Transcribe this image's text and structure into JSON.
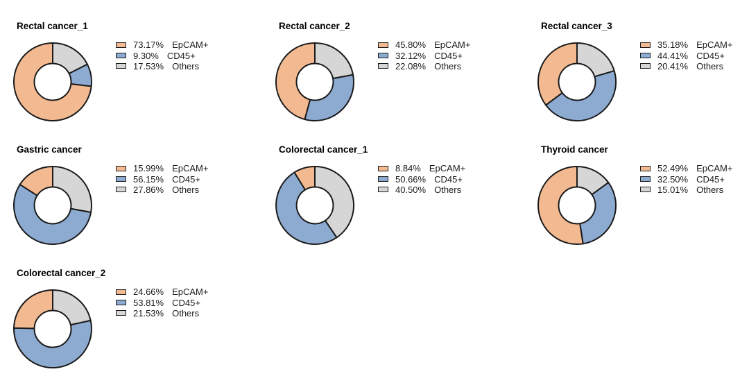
{
  "figure": {
    "background": "#FFFFFF",
    "grid": "3 columns x 3 rows, 7 donut charts",
    "slice_order_clockwise_from_top": [
      "Others",
      "CD45+",
      "EpCAM+"
    ]
  },
  "palette": {
    "EpCAM+": "#F3BA92",
    "CD45+": "#8DABD1",
    "Others": "#D6D6D6",
    "outline": "#1A1A1A"
  },
  "chart_data": [
    {
      "type": "pie",
      "subtype": "donut",
      "title": "Rectal cancer_1",
      "labels": [
        "EpCAM+",
        "CD45+",
        "Others"
      ],
      "values": [
        73.17,
        9.3,
        17.53
      ],
      "pct_texts": [
        "73.17%",
        "9.30%",
        "17.53%"
      ],
      "legend_position": "right",
      "start_angle": "top",
      "direction": "counterclockwise"
    },
    {
      "type": "pie",
      "subtype": "donut",
      "title": "Rectal cancer_2",
      "labels": [
        "EpCAM+",
        "CD45+",
        "Others"
      ],
      "values": [
        45.8,
        32.12,
        22.08
      ],
      "pct_texts": [
        "45.80%",
        "32.12%",
        "22.08%"
      ],
      "legend_position": "right",
      "start_angle": "top",
      "direction": "counterclockwise"
    },
    {
      "type": "pie",
      "subtype": "donut",
      "title": "Rectal cancer_3",
      "labels": [
        "EpCAM+",
        "CD45+",
        "Others"
      ],
      "values": [
        35.18,
        44.41,
        20.41
      ],
      "pct_texts": [
        "35.18%",
        "44.41%",
        "20.41%"
      ],
      "legend_position": "right",
      "start_angle": "top",
      "direction": "counterclockwise"
    },
    {
      "type": "pie",
      "subtype": "donut",
      "title": "Gastric cancer",
      "labels": [
        "EpCAM+",
        "CD45+",
        "Others"
      ],
      "values": [
        15.99,
        56.15,
        27.86
      ],
      "pct_texts": [
        "15.99%",
        "56.15%",
        "27.86%"
      ],
      "legend_position": "right",
      "start_angle": "top",
      "direction": "counterclockwise"
    },
    {
      "type": "pie",
      "subtype": "donut",
      "title": "Colorectal cancer_1",
      "labels": [
        "EpCAM+",
        "CD45+",
        "Others"
      ],
      "values": [
        8.84,
        50.66,
        40.5
      ],
      "pct_texts": [
        "8.84%",
        "50.66%",
        "40.50%"
      ],
      "legend_position": "right",
      "start_angle": "top",
      "direction": "counterclockwise"
    },
    {
      "type": "pie",
      "subtype": "donut",
      "title": "Thyroid cancer",
      "labels": [
        "EpCAM+",
        "CD45+",
        "Others"
      ],
      "values": [
        52.49,
        32.5,
        15.01
      ],
      "pct_texts": [
        "52.49%",
        "32.50%",
        "15.01%"
      ],
      "legend_position": "right",
      "start_angle": "top",
      "direction": "counterclockwise"
    },
    {
      "type": "pie",
      "subtype": "donut",
      "title": "Colorectal cancer_2",
      "labels": [
        "EpCAM+",
        "CD45+",
        "Others"
      ],
      "values": [
        24.66,
        53.81,
        21.53
      ],
      "pct_texts": [
        "24.66%",
        "53.81%",
        "21.53%"
      ],
      "legend_position": "right",
      "start_angle": "top",
      "direction": "counterclockwise"
    }
  ]
}
